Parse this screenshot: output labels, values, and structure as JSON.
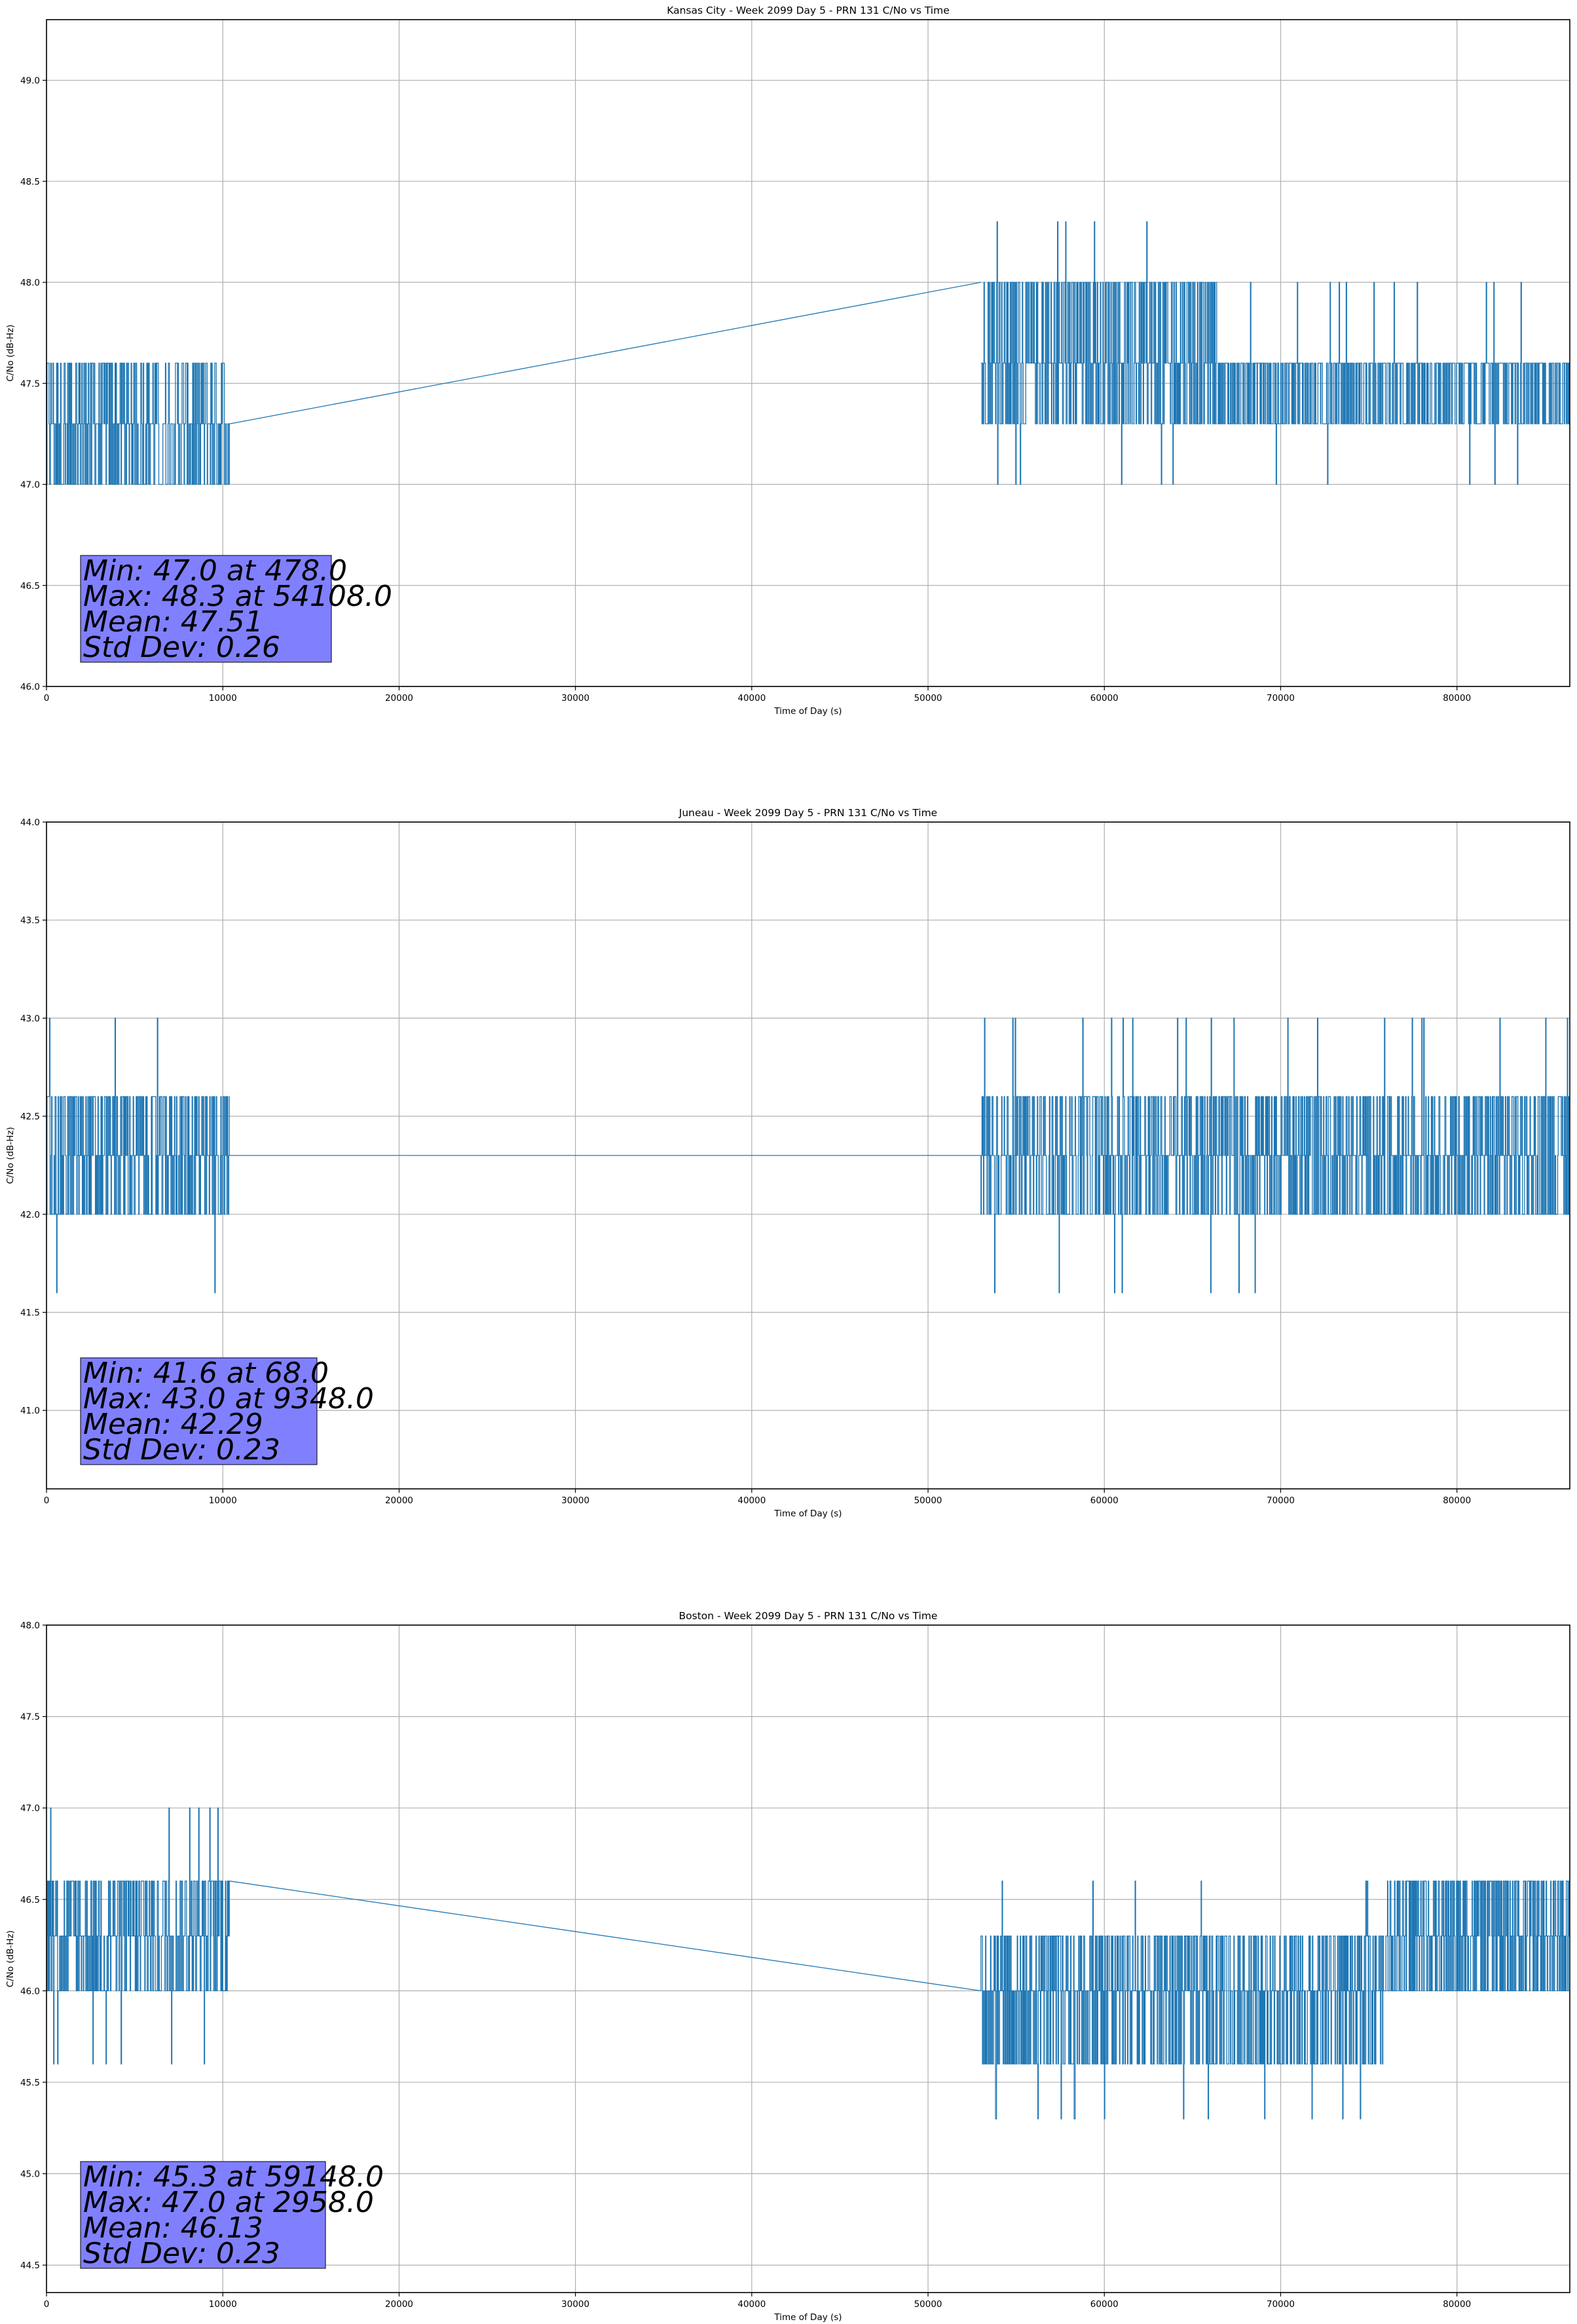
{
  "chart_data": [
    {
      "type": "line",
      "title": "Kansas City - Week 2099 Day 5 - PRN 131 C/No vs Time",
      "xlabel": "Time of Day (s)",
      "ylabel": "C/No (dB-Hz)",
      "xlim": [
        0,
        86400
      ],
      "ylim": [
        46.0,
        49.3
      ],
      "xticks": [
        0,
        10000,
        20000,
        30000,
        40000,
        50000,
        60000,
        70000,
        80000
      ],
      "yticks": [
        "46.0",
        "46.5",
        "47.0",
        "47.5",
        "48.0",
        "48.5",
        "49.0"
      ],
      "grid": true,
      "series": [
        {
          "color": "#1f77b4",
          "segments": [
            {
              "x_start": 0,
              "x_end": 10400,
              "base": 47.3,
              "levels": [
                47.0,
                47.3,
                47.6
              ],
              "spike_up": [],
              "spike_down": [
                47.0
              ]
            },
            {
              "x_start": 10400,
              "x_end": 53000,
              "line": [
                47.3,
                48.0
              ]
            },
            {
              "x_start": 53000,
              "x_end": 66400,
              "base": 47.6,
              "levels": [
                47.3,
                47.6,
                48.0
              ],
              "spike_up": [
                48.3
              ],
              "spike_down": [
                47.0
              ]
            },
            {
              "x_start": 66400,
              "x_end": 86400,
              "base": 47.3,
              "levels": [
                47.3,
                47.6
              ],
              "spike_up": [
                48.0
              ],
              "spike_down": [
                47.0
              ]
            }
          ]
        }
      ],
      "stats": {
        "min": "Min: 47.0 at 478.0",
        "max": "Max: 48.3 at 54108.0",
        "mean": "Mean: 47.51",
        "std": "Std Dev: 0.26"
      },
      "stats_box_color": "#8080ff"
    },
    {
      "type": "line",
      "title": "Juneau - Week 2099 Day 5 - PRN 131 C/No vs Time",
      "xlabel": "Time of Day (s)",
      "ylabel": "C/No (dB-Hz)",
      "xlim": [
        0,
        86400
      ],
      "ylim": [
        40.6,
        44.0
      ],
      "xticks": [
        0,
        10000,
        20000,
        30000,
        40000,
        50000,
        60000,
        70000,
        80000
      ],
      "yticks": [
        "41.0",
        "41.5",
        "42.0",
        "42.5",
        "43.0",
        "43.5",
        "44.0"
      ],
      "grid": true,
      "series": [
        {
          "color": "#1f77b4",
          "segments": [
            {
              "x_start": 0,
              "x_end": 10400,
              "base": 42.3,
              "levels": [
                42.0,
                42.3,
                42.6
              ],
              "spike_up": [
                43.0
              ],
              "spike_down": [
                41.6
              ]
            },
            {
              "x_start": 10400,
              "x_end": 53000,
              "line": [
                42.3,
                42.3
              ]
            },
            {
              "x_start": 53000,
              "x_end": 70000,
              "base": 42.3,
              "levels": [
                42.0,
                42.3,
                42.6
              ],
              "spike_up": [
                43.0
              ],
              "spike_down": [
                41.6
              ]
            },
            {
              "x_start": 70000,
              "x_end": 86400,
              "base": 42.3,
              "levels": [
                42.0,
                42.3,
                42.6
              ],
              "spike_up": [
                43.0
              ],
              "spike_down": []
            }
          ]
        }
      ],
      "stats": {
        "min": "Min: 41.6 at 68.0",
        "max": "Max: 43.0 at 9348.0",
        "mean": "Mean: 42.29",
        "std": "Std Dev: 0.23"
      },
      "stats_box_color": "#8080ff"
    },
    {
      "type": "line",
      "title": "Boston - Week 2099 Day 5 - PRN 131 C/No vs Time",
      "xlabel": "Time of Day (s)",
      "ylabel": "C/No (dB-Hz)",
      "xlim": [
        0,
        86400
      ],
      "ylim": [
        44.35,
        48.0
      ],
      "xticks": [
        0,
        10000,
        20000,
        30000,
        40000,
        50000,
        60000,
        70000,
        80000
      ],
      "yticks": [
        "44.5",
        "45.0",
        "45.5",
        "46.0",
        "46.5",
        "47.0",
        "47.5",
        "48.0"
      ],
      "grid": true,
      "series": [
        {
          "color": "#1f77b4",
          "segments": [
            {
              "x_start": 0,
              "x_end": 10400,
              "base": 46.3,
              "levels": [
                46.0,
                46.3,
                46.6
              ],
              "spike_up": [
                47.0
              ],
              "spike_down": [
                45.6
              ]
            },
            {
              "x_start": 10400,
              "x_end": 53000,
              "line": [
                46.6,
                46.0
              ]
            },
            {
              "x_start": 53000,
              "x_end": 76000,
              "base": 46.0,
              "levels": [
                45.6,
                46.0,
                46.3
              ],
              "spike_up": [
                46.6
              ],
              "spike_down": [
                45.3
              ]
            },
            {
              "x_start": 76000,
              "x_end": 86400,
              "base": 46.3,
              "levels": [
                46.0,
                46.3,
                46.6
              ],
              "spike_up": [],
              "spike_down": []
            }
          ]
        }
      ],
      "stats": {
        "min": "Min: 45.3 at 59148.0",
        "max": "Max: 47.0 at 2958.0",
        "mean": "Mean: 46.13",
        "std": "Std Dev: 0.23"
      },
      "stats_box_color": "#8080ff"
    }
  ]
}
